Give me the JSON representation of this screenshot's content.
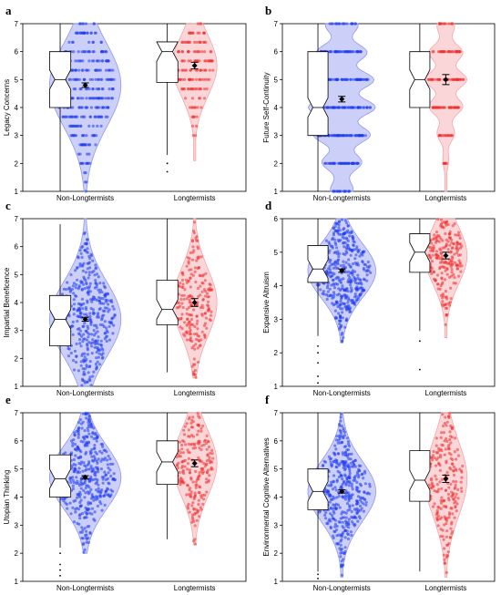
{
  "colors": {
    "group1_fill": "#8f97f0",
    "group1_points": "#1f3bf0",
    "group2_fill": "#f6a5a8",
    "group2_points": "#f03030",
    "mean_marker": "#000000"
  },
  "chart_data": [
    {
      "panel": "a",
      "type": "violin-box-strip",
      "ylabel": "Legacy Concerns",
      "ylim": [
        1,
        7
      ],
      "categories": [
        "Non-Longtermists",
        "Longtermists"
      ],
      "series": [
        {
          "name": "Non-Longtermists",
          "box": {
            "q1": 4.0,
            "median": 5.0,
            "q3": 6.0,
            "whisker_low": 1.0,
            "whisker_high": 7.0
          },
          "mean": 4.8,
          "se": 0.08,
          "outliers": []
        },
        {
          "name": "Longtermists",
          "box": {
            "q1": 4.9,
            "median": 6.0,
            "q3": 6.35,
            "whisker_low": 2.3,
            "whisker_high": 7.0
          },
          "mean": 5.5,
          "se": 0.12,
          "outliers": [
            2.0,
            1.7
          ]
        }
      ]
    },
    {
      "panel": "b",
      "type": "violin-box-strip",
      "ylabel": "Future Self-Continuity",
      "ylim": [
        1,
        7
      ],
      "categories": [
        "Non-Longtermists",
        "Longtermists"
      ],
      "series": [
        {
          "name": "Non-Longtermists",
          "box": {
            "q1": 3.0,
            "median": 4.0,
            "q3": 6.0,
            "whisker_low": 1.0,
            "whisker_high": 7.0
          },
          "mean": 4.3,
          "se": 0.1,
          "outliers": []
        },
        {
          "name": "Longtermists",
          "box": {
            "q1": 4.0,
            "median": 5.0,
            "q3": 6.0,
            "whisker_low": 1.0,
            "whisker_high": 7.0
          },
          "mean": 5.0,
          "se": 0.18,
          "outliers": []
        }
      ]
    },
    {
      "panel": "c",
      "type": "violin-box-strip",
      "ylabel": "Impartial Beneficence",
      "ylim": [
        1,
        7
      ],
      "categories": [
        "Non-Longtermists",
        "Longtermists"
      ],
      "series": [
        {
          "name": "Non-Longtermists",
          "box": {
            "q1": 2.45,
            "median": 3.4,
            "q3": 4.25,
            "whisker_low": 1.0,
            "whisker_high": 6.8
          },
          "mean": 3.4,
          "se": 0.07,
          "outliers": []
        },
        {
          "name": "Longtermists",
          "box": {
            "q1": 3.2,
            "median": 3.75,
            "q3": 4.8,
            "whisker_low": 1.5,
            "whisker_high": 7.0
          },
          "mean": 4.0,
          "se": 0.14,
          "outliers": []
        }
      ]
    },
    {
      "panel": "d",
      "type": "violin-box-strip",
      "ylabel": "Expansive Altruism",
      "ylim": [
        1,
        6
      ],
      "categories": [
        "Non-Longtermists",
        "Longtermists"
      ],
      "series": [
        {
          "name": "Non-Longtermists",
          "box": {
            "q1": 4.1,
            "median": 4.5,
            "q3": 5.2,
            "whisker_low": 2.5,
            "whisker_high": 6.0
          },
          "mean": 4.45,
          "se": 0.05,
          "outliers": [
            2.2,
            2.0,
            1.7,
            1.3,
            1.1
          ]
        },
        {
          "name": "Longtermists",
          "box": {
            "q1": 4.4,
            "median": 5.0,
            "q3": 5.55,
            "whisker_low": 2.65,
            "whisker_high": 6.0
          },
          "mean": 4.9,
          "se": 0.1,
          "outliers": [
            2.35,
            1.5
          ]
        }
      ]
    },
    {
      "panel": "e",
      "type": "violin-box-strip",
      "ylabel": "Utopian Thinking",
      "ylim": [
        1,
        7
      ],
      "categories": [
        "Non-Longtermists",
        "Longtermists"
      ],
      "series": [
        {
          "name": "Non-Longtermists",
          "box": {
            "q1": 4.0,
            "median": 4.65,
            "q3": 5.5,
            "whisker_low": 2.2,
            "whisker_high": 7.0
          },
          "mean": 4.7,
          "se": 0.06,
          "outliers": [
            2.0,
            1.6,
            1.4,
            1.2
          ]
        },
        {
          "name": "Longtermists",
          "box": {
            "q1": 4.45,
            "median": 5.25,
            "q3": 6.0,
            "whisker_low": 2.5,
            "whisker_high": 7.0
          },
          "mean": 5.2,
          "se": 0.12,
          "outliers": []
        }
      ]
    },
    {
      "panel": "f",
      "type": "violin-box-strip",
      "ylabel": "Environmental Cognitive Alternatives",
      "ylim": [
        1,
        7
      ],
      "categories": [
        "Non-Longtermists",
        "Longtermists"
      ],
      "series": [
        {
          "name": "Non-Longtermists",
          "box": {
            "q1": 3.55,
            "median": 4.2,
            "q3": 5.0,
            "whisker_low": 1.35,
            "whisker_high": 7.0
          },
          "mean": 4.2,
          "se": 0.06,
          "outliers": [
            1.25,
            1.1
          ]
        },
        {
          "name": "Longtermists",
          "box": {
            "q1": 3.85,
            "median": 4.6,
            "q3": 5.65,
            "whisker_low": 1.35,
            "whisker_high": 7.0
          },
          "mean": 4.65,
          "se": 0.13,
          "outliers": []
        }
      ]
    }
  ]
}
